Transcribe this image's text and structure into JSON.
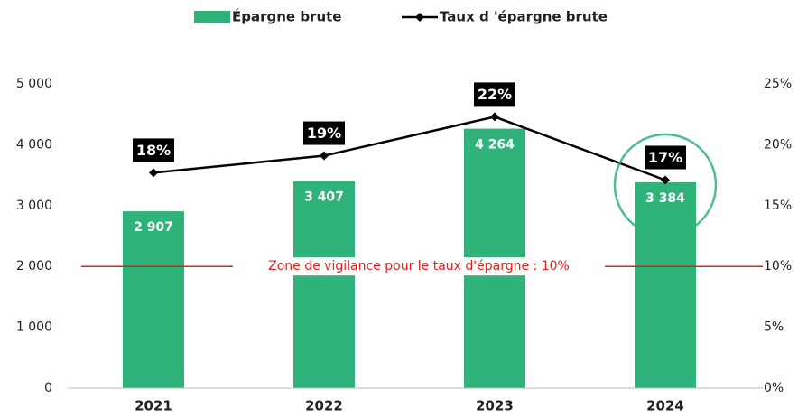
{
  "chart_data": {
    "type": "bar+line",
    "categories": [
      "2021",
      "2022",
      "2023",
      "2024"
    ],
    "series": [
      {
        "name": "Épargne brute",
        "type": "bar",
        "color": "#2fb37a",
        "axis": "y",
        "values": [
          2907,
          3407,
          4264,
          3384
        ],
        "value_labels": [
          "2 907",
          "3 407",
          "4 264",
          "3 384"
        ]
      },
      {
        "name": "Taux d 'épargne brute",
        "type": "line",
        "color": "#000000",
        "axis": "y2",
        "values": [
          17.7,
          19.1,
          22.3,
          17.1
        ],
        "value_labels": [
          "18%",
          "19%",
          "22%",
          "17%"
        ]
      }
    ],
    "ylim": [
      0,
      5000
    ],
    "yticks": [
      0,
      {
        "value": 1000,
        "label": "1 000"
      },
      {
        "value": 2000,
        "label": "2 000"
      },
      {
        "value": 3000,
        "label": "3 000"
      },
      {
        "value": 4000,
        "label": "4 000"
      },
      {
        "value": 5000,
        "label": "5 000"
      }
    ],
    "y2lim": [
      0,
      25
    ],
    "y2ticks": [
      {
        "value": 0,
        "label": "0%"
      },
      {
        "value": 5,
        "label": "5%"
      },
      {
        "value": 10,
        "label": "10%"
      },
      {
        "value": 15,
        "label": "15%"
      },
      {
        "value": 20,
        "label": "20%"
      },
      {
        "value": 25,
        "label": "25%"
      }
    ],
    "threshold": {
      "value": 10,
      "axis": "y2",
      "color": "#e0201b",
      "label": "Zone de vigilance pour le taux d'épargne : 10%"
    },
    "legend": "top"
  }
}
